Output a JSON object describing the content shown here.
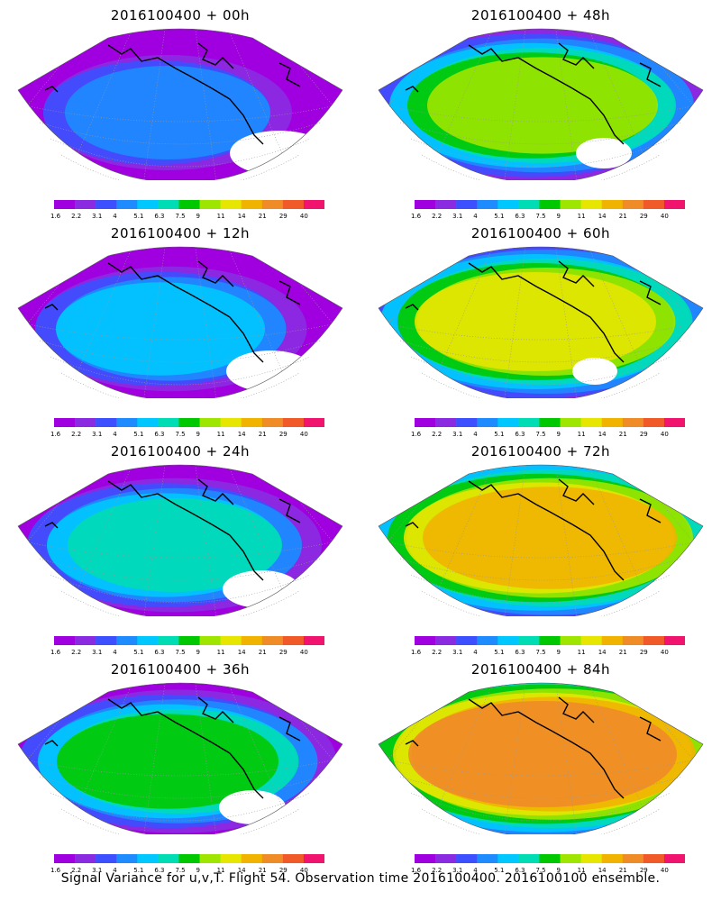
{
  "footer": "Signal Variance for u,v,T. Flight 54. Observation time 2016100400. 2016100100 ensemble.",
  "colorbar": {
    "labels": [
      "1.6",
      "2.2",
      "3.1",
      "4",
      "5.1",
      "6.3",
      "7.5",
      "9",
      "11",
      "14",
      "21",
      "29",
      "40"
    ],
    "colors": [
      "#a000e0",
      "#8a2be2",
      "#3c50ff",
      "#1e8cff",
      "#00c8ff",
      "#00dcb4",
      "#00c800",
      "#9ee600",
      "#e6e600",
      "#f0b400",
      "#f08c28",
      "#f05a28",
      "#f0146e"
    ]
  },
  "panels": [
    {
      "title": "2016100400 + 00h",
      "level": 0
    },
    {
      "title": "2016100400 + 48h",
      "level": 4
    },
    {
      "title": "2016100400 + 12h",
      "level": 1
    },
    {
      "title": "2016100400 + 60h",
      "level": 5
    },
    {
      "title": "2016100400 + 24h",
      "level": 2
    },
    {
      "title": "2016100400 + 72h",
      "level": 6
    },
    {
      "title": "2016100400 + 36h",
      "level": 3
    },
    {
      "title": "2016100400 + 84h",
      "level": 7
    }
  ]
}
